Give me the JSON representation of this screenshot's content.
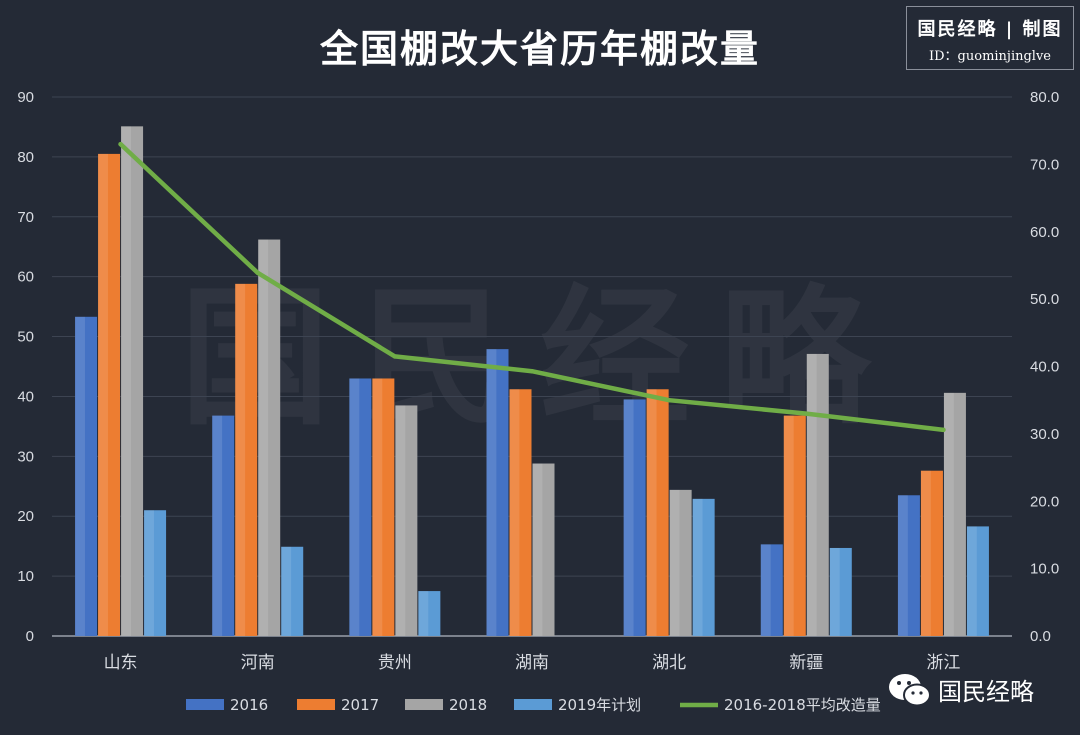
{
  "chart_data": {
    "type": "bar",
    "title": "全国棚改大省历年棚改量",
    "categories": [
      "山东",
      "河南",
      "贵州",
      "湖南",
      "湖北",
      "新疆",
      "浙江"
    ],
    "series": [
      {
        "name": "2016",
        "values": [
          53.3,
          36.8,
          43.0,
          47.9,
          39.5,
          15.3,
          23.5
        ],
        "color": "#4472c4"
      },
      {
        "name": "2017",
        "values": [
          80.5,
          58.8,
          43.0,
          41.2,
          41.2,
          36.8,
          27.6
        ],
        "color": "#ed7d31"
      },
      {
        "name": "2018",
        "values": [
          85.1,
          66.2,
          38.5,
          28.8,
          24.4,
          47.1,
          40.6
        ],
        "color": "#a5a5a5"
      },
      {
        "name": "2019年计划",
        "values": [
          21.0,
          14.9,
          7.5,
          null,
          22.9,
          14.7,
          18.3
        ],
        "color": "#5b9bd5"
      }
    ],
    "line_series": {
      "name": "2016-2018平均改造量",
      "values": [
        73.0,
        53.9,
        41.5,
        39.3,
        35.0,
        33.0,
        30.6
      ],
      "color": "#70ad47",
      "axis": "right"
    },
    "ylim": [
      0,
      90
    ],
    "yticks": [
      "0",
      "10",
      "20",
      "30",
      "40",
      "50",
      "60",
      "70",
      "80",
      "90"
    ],
    "y2lim": [
      0,
      80
    ],
    "y2ticks": [
      "0.0",
      "10.0",
      "20.0",
      "30.0",
      "40.0",
      "50.0",
      "60.0",
      "70.0",
      "80.0"
    ],
    "grid": true,
    "legend_position": "bottom"
  },
  "brand": {
    "line1": "国民经略 | 制图",
    "line2": "ID：guominjinglve"
  },
  "watermark": "国民经略",
  "footer_logo": "国民经略"
}
